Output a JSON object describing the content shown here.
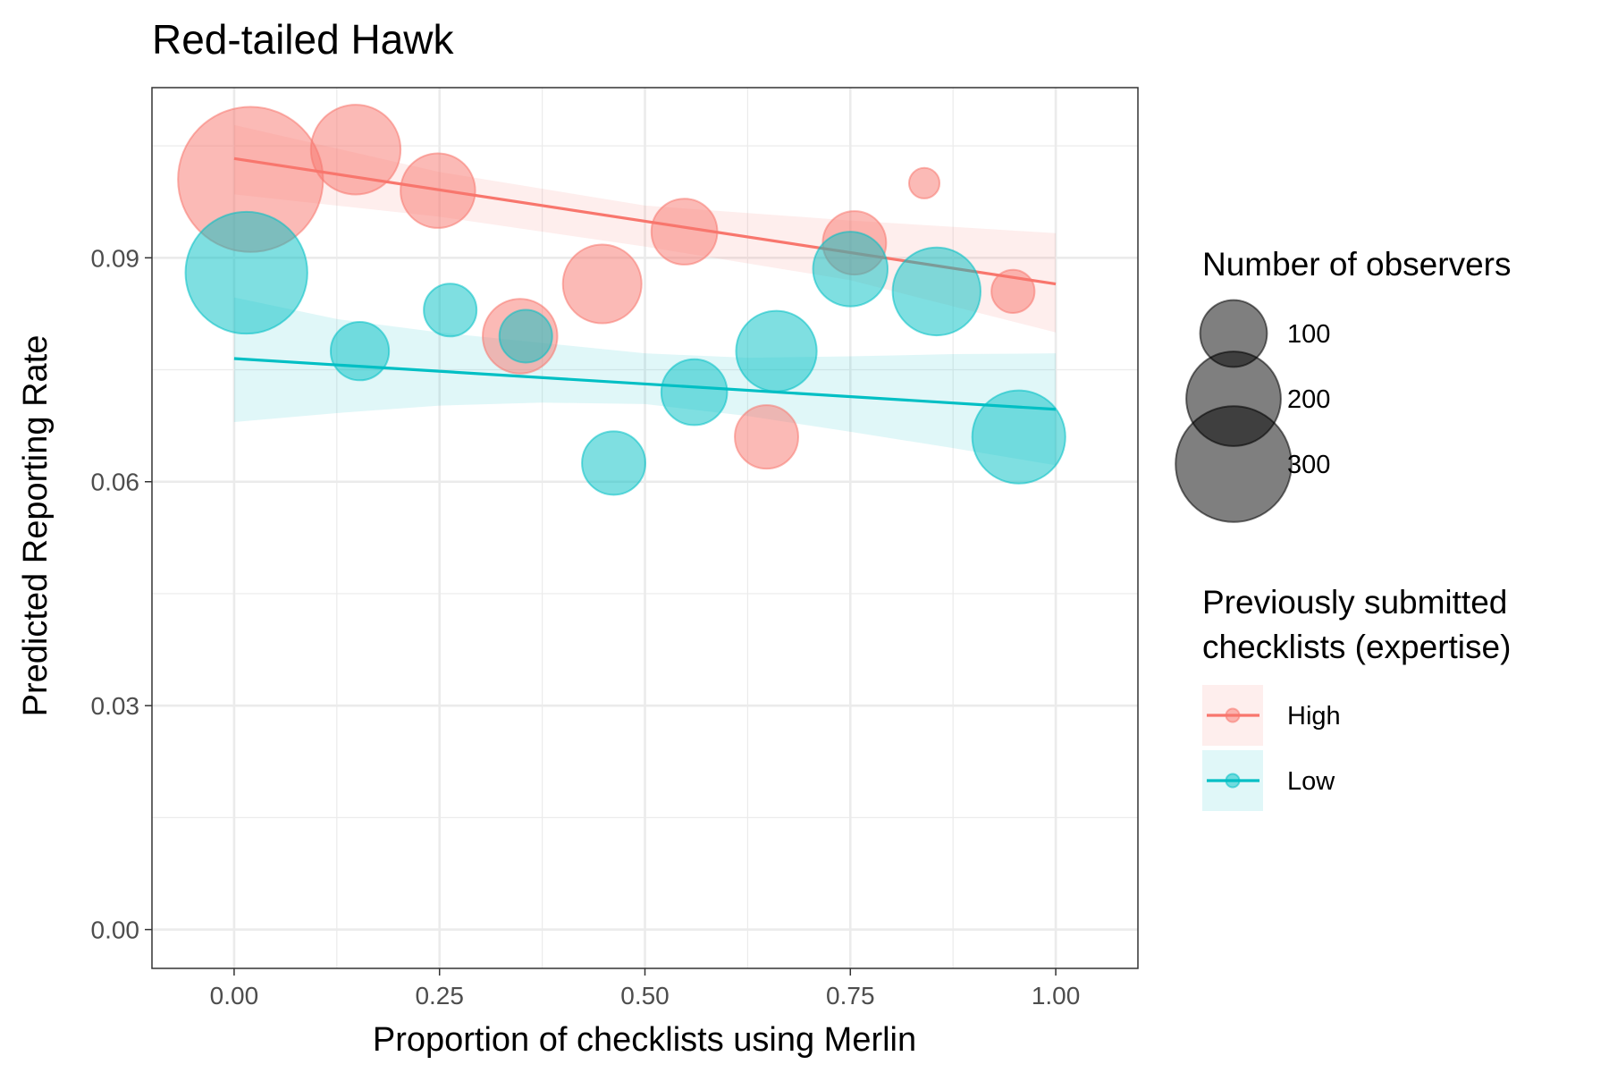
{
  "chart_data": {
    "type": "scatter",
    "title": "Red-tailed Hawk",
    "xlabel": "Proportion of checklists using Merlin",
    "ylabel": "Predicted Reporting Rate",
    "xlim": [
      -0.1,
      1.1
    ],
    "ylim": [
      -0.0052,
      0.1128
    ],
    "x_ticks": [
      0.0,
      0.25,
      0.5,
      0.75,
      1.0
    ],
    "x_tick_labels": [
      "0.00",
      "0.25",
      "0.50",
      "0.75",
      "1.00"
    ],
    "y_ticks": [
      0.0,
      0.03,
      0.06,
      0.09
    ],
    "y_tick_labels": [
      "0.00",
      "0.03",
      "0.06",
      "0.09"
    ],
    "grid": true,
    "size_legend": {
      "title": "Number of observers",
      "entries": [
        {
          "label": "100",
          "value": 100
        },
        {
          "label": "200",
          "value": 200
        },
        {
          "label": "300",
          "value": 300
        }
      ]
    },
    "color_legend": {
      "title_lines": [
        "Previously submitted",
        "checklists (expertise)"
      ],
      "placement": "right"
    },
    "series": [
      {
        "name": "High",
        "color": "#F8766D",
        "points": [
          {
            "x": 0.02,
            "y": 0.1005,
            "n": 340
          },
          {
            "x": 0.148,
            "y": 0.1045,
            "n": 130
          },
          {
            "x": 0.248,
            "y": 0.099,
            "n": 90
          },
          {
            "x": 0.348,
            "y": 0.0795,
            "n": 90
          },
          {
            "x": 0.448,
            "y": 0.0865,
            "n": 100
          },
          {
            "x": 0.548,
            "y": 0.0935,
            "n": 70
          },
          {
            "x": 0.648,
            "y": 0.066,
            "n": 65
          },
          {
            "x": 0.755,
            "y": 0.092,
            "n": 65
          },
          {
            "x": 0.84,
            "y": 0.1,
            "n": 15
          },
          {
            "x": 0.948,
            "y": 0.0855,
            "n": 30
          }
        ],
        "trend": {
          "x": [
            0.0,
            1.0
          ],
          "y": [
            0.1033,
            0.0865
          ]
        },
        "ci": {
          "x": [
            0.0,
            0.25,
            0.5,
            0.75,
            1.0
          ],
          "lower": [
            0.0985,
            0.0955,
            0.0915,
            0.087,
            0.08
          ],
          "upper": [
            0.1078,
            0.1015,
            0.097,
            0.095,
            0.0933
          ]
        }
      },
      {
        "name": "Low",
        "color": "#00BFC4",
        "points": [
          {
            "x": 0.015,
            "y": 0.088,
            "n": 240
          },
          {
            "x": 0.153,
            "y": 0.0775,
            "n": 55
          },
          {
            "x": 0.263,
            "y": 0.083,
            "n": 45
          },
          {
            "x": 0.355,
            "y": 0.0795,
            "n": 45
          },
          {
            "x": 0.462,
            "y": 0.0625,
            "n": 65
          },
          {
            "x": 0.56,
            "y": 0.072,
            "n": 70
          },
          {
            "x": 0.66,
            "y": 0.0775,
            "n": 105
          },
          {
            "x": 0.75,
            "y": 0.0885,
            "n": 90
          },
          {
            "x": 0.855,
            "y": 0.0855,
            "n": 125
          },
          {
            "x": 0.955,
            "y": 0.066,
            "n": 140
          }
        ],
        "trend": {
          "x": [
            0.0,
            1.0
          ],
          "y": [
            0.0765,
            0.0697
          ]
        },
        "ci": {
          "x": [
            0.0,
            0.125,
            0.25,
            0.375,
            0.5,
            0.625,
            0.75,
            0.875,
            1.0
          ],
          "lower": [
            0.068,
            0.0692,
            0.0702,
            0.0706,
            0.0704,
            0.0688,
            0.0667,
            0.0645,
            0.0622
          ],
          "upper": [
            0.0847,
            0.0818,
            0.08,
            0.0786,
            0.0772,
            0.0766,
            0.0768,
            0.0771,
            0.0772
          ]
        }
      }
    ]
  }
}
